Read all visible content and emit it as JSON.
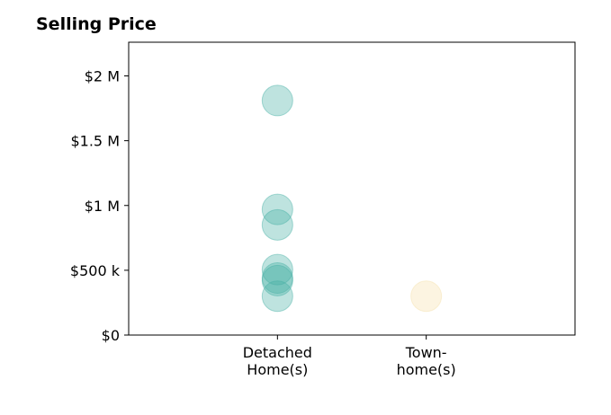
{
  "chart_data": {
    "type": "scatter",
    "title": "Selling Price",
    "xlabel": "",
    "ylabel": "",
    "categories": [
      [
        "Detached",
        "Home(s)"
      ],
      [
        "Town-",
        "home(s)"
      ]
    ],
    "yticks": [
      {
        "value": 0,
        "label": "$0"
      },
      {
        "value": 500000,
        "label": "$500 k"
      },
      {
        "value": 1000000,
        "label": "$1 M"
      },
      {
        "value": 1500000,
        "label": "$1.5 M"
      },
      {
        "value": 2000000,
        "label": "$2 M"
      }
    ],
    "ylim": [
      0,
      2260000
    ],
    "xlim": [
      -1,
      2
    ],
    "grid": false,
    "colors": [
      "#45b0a4",
      "#f5dfa8"
    ],
    "series": [
      {
        "category_index": 0,
        "values": [
          1810000,
          970000,
          850000,
          505000,
          440000,
          420000,
          300000
        ]
      },
      {
        "category_index": 1,
        "values": [
          300000
        ]
      }
    ]
  }
}
